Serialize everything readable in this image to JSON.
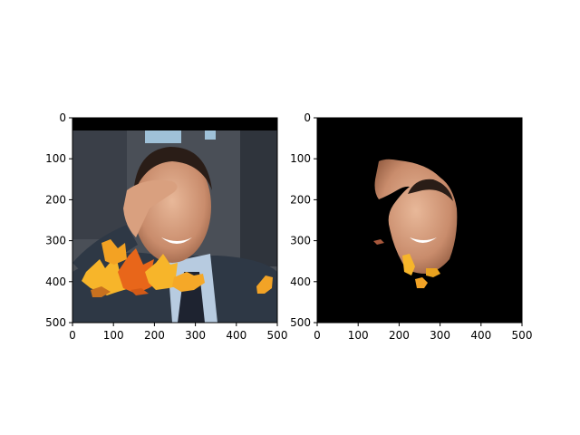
{
  "chart_data": [
    {
      "type": "image",
      "panel": "left",
      "content": "photograph with leaves",
      "xlim": [
        0,
        500
      ],
      "ylim": [
        500,
        0
      ],
      "xticks": [
        0,
        100,
        200,
        300,
        400,
        500
      ],
      "yticks": [
        0,
        100,
        200,
        300,
        400,
        500
      ],
      "xtick_labels": [
        "0",
        "100",
        "200",
        "300",
        "400",
        "500"
      ],
      "ytick_labels": [
        "0",
        "100",
        "200",
        "300",
        "400",
        "500"
      ]
    },
    {
      "type": "image",
      "panel": "right",
      "content": "segmentation mask applied to photograph (black background)",
      "xlim": [
        0,
        500
      ],
      "ylim": [
        500,
        0
      ],
      "xticks": [
        0,
        100,
        200,
        300,
        400,
        500
      ],
      "yticks": [
        0,
        100,
        200,
        300,
        400,
        500
      ],
      "xtick_labels": [
        "0",
        "100",
        "200",
        "300",
        "400",
        "500"
      ],
      "ytick_labels": [
        "0",
        "100",
        "200",
        "300",
        "400",
        "500"
      ]
    }
  ],
  "colors": {
    "background": "#ffffff",
    "mask_background": "#000000",
    "suit": "#2e3845",
    "skin": "#d9a07f",
    "leaf_orange": "#f08a1c",
    "leaf_yellow": "#f7b52a"
  }
}
